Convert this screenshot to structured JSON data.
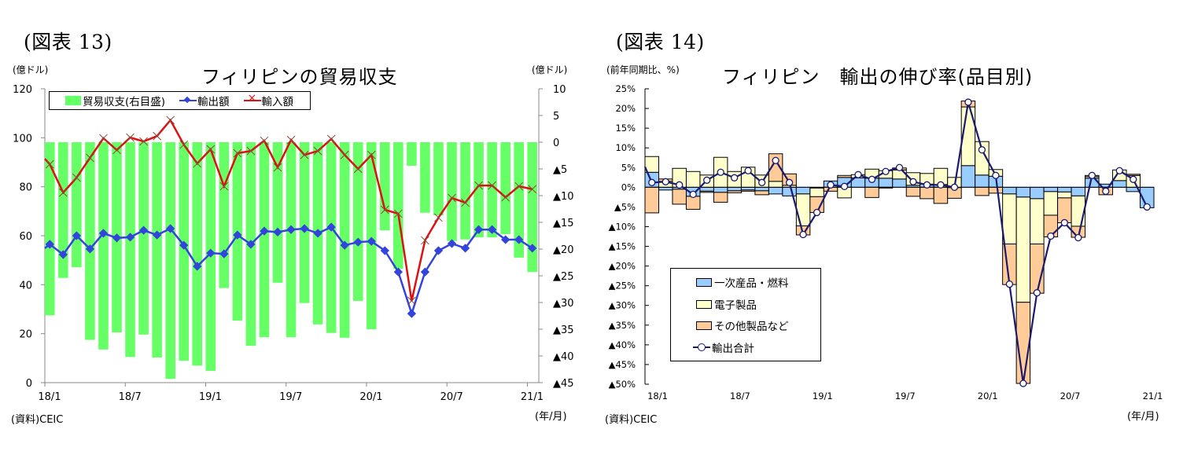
{
  "left": {
    "figure_label": "(図表 13)",
    "left_unit": "(億ドル)",
    "right_unit": "(億ドル)",
    "source": "(資料)CEIC",
    "x_unit": "(年/月)",
    "legend": {
      "balance": "貿易収支(右目盛)",
      "exports": "輸出額",
      "imports": "輸入額"
    }
  },
  "right": {
    "figure_label": "(図表 14)",
    "y_unit": "(前年同期比、%)",
    "source": "(資料)CEIC",
    "x_unit": "(年/月)",
    "legend": {
      "primary": "一次産品・燃料",
      "electronics": "電子製品",
      "other": "その他製品など",
      "total": "輸出合計"
    }
  },
  "chart_data": [
    {
      "type": "bar+line",
      "title": "フィリピンの貿易収支",
      "xlabel": "(年/月)",
      "ylabel": "(億ドル)",
      "ylabel_right": "(億ドル)",
      "ylim": [
        0,
        120
      ],
      "yticks": [
        "0",
        "20",
        "40",
        "60",
        "80",
        "100",
        "120"
      ],
      "ylim_right": [
        -45,
        10
      ],
      "yticks_right": [
        "▲45",
        "▲40",
        "▲35",
        "▲30",
        "▲25",
        "▲20",
        "▲15",
        "▲10",
        "▲5",
        "0",
        "5",
        "10"
      ],
      "xticks": [
        "18/1",
        "18/7",
        "19/1",
        "19/7",
        "20/1",
        "20/7",
        "21/1"
      ],
      "categories": [
        "18/1",
        "18/2",
        "18/3",
        "18/4",
        "18/5",
        "18/6",
        "18/7",
        "18/8",
        "18/9",
        "18/10",
        "18/11",
        "18/12",
        "19/1",
        "19/2",
        "19/3",
        "19/4",
        "19/5",
        "19/6",
        "19/7",
        "19/8",
        "19/9",
        "19/10",
        "19/11",
        "19/12",
        "20/1",
        "20/2",
        "20/3",
        "20/4",
        "20/5",
        "20/6",
        "20/7",
        "20/8",
        "20/9",
        "20/10",
        "20/11",
        "20/12",
        "21/1"
      ],
      "line_start": {
        "exports": 54.9,
        "imports": 91.4
      },
      "series": [
        {
          "name": "貿易収支(右目盛)",
          "axis": "right",
          "kind": "bar",
          "color": "#66ff66",
          "values": [
            -32.4,
            -25.4,
            -23.4,
            -37.0,
            -38.8,
            -35.6,
            -40.2,
            -36.0,
            -40.3,
            -44.3,
            -40.9,
            -41.8,
            -42.8,
            -27.3,
            -33.4,
            -38.1,
            -36.5,
            -26.3,
            -36.5,
            -30.1,
            -34.1,
            -35.7,
            -36.6,
            -29.7,
            -35.0,
            -16.5,
            -23.7,
            -4.4,
            -13.2,
            -13.7,
            -18.5,
            -18.2,
            -17.8,
            -17.8,
            -17.2,
            -21.6,
            -24.3
          ]
        },
        {
          "name": "輸出額",
          "axis": "left",
          "kind": "line",
          "marker": "diamond",
          "color": "#3344dd",
          "values": [
            56.5,
            52.3,
            60.0,
            54.6,
            61.0,
            59.1,
            59.4,
            62.2,
            60.3,
            62.9,
            56.1,
            47.5,
            52.9,
            52.6,
            60.3,
            56.5,
            61.9,
            61.5,
            62.5,
            62.9,
            61.0,
            63.5,
            56.1,
            57.4,
            57.7,
            53.9,
            45.2,
            28.2,
            45.2,
            53.9,
            56.8,
            54.9,
            62.5,
            62.5,
            58.4,
            58.4,
            54.9
          ]
        },
        {
          "name": "輸入額",
          "axis": "left",
          "kind": "line",
          "marker": "cross",
          "color": "#dd1111",
          "values": [
            89.2,
            77.6,
            83.7,
            91.8,
            99.8,
            95.0,
            100.1,
            98.5,
            100.7,
            107.2,
            97.2,
            89.5,
            95.3,
            80.2,
            93.7,
            94.6,
            98.8,
            87.9,
            99.1,
            93.0,
            94.6,
            99.5,
            93.0,
            87.3,
            93.0,
            70.6,
            69.0,
            33.4,
            58.1,
            67.4,
            75.4,
            73.5,
            80.5,
            80.5,
            75.7,
            80.2,
            79.0
          ]
        }
      ],
      "legend": "top-left"
    },
    {
      "type": "stacked-bar+line",
      "title": "フィリピン　輸出の伸び率(品目別)",
      "xlabel": "(年/月)",
      "ylabel": "(前年同期比、%)",
      "ylim": [
        -50,
        25
      ],
      "yticks": [
        "▲50%",
        "▲45%",
        "▲40%",
        "▲35%",
        "▲30%",
        "▲25%",
        "▲20%",
        "▲15%",
        "▲10%",
        "▲5%",
        "0%",
        "5%",
        "10%",
        "15%",
        "20%",
        "25%"
      ],
      "xticks": [
        "18/1",
        "18/7",
        "19/1",
        "19/7",
        "20/1",
        "20/7",
        "21/1"
      ],
      "categories": [
        "18/1",
        "18/2",
        "18/3",
        "18/4",
        "18/5",
        "18/6",
        "18/7",
        "18/8",
        "18/9",
        "18/10",
        "18/11",
        "18/12",
        "19/1",
        "19/2",
        "19/3",
        "19/4",
        "19/5",
        "19/6",
        "19/7",
        "19/8",
        "19/9",
        "19/10",
        "19/11",
        "19/12",
        "20/1",
        "20/2",
        "20/3",
        "20/4",
        "20/5",
        "20/6",
        "20/7",
        "20/8",
        "20/9",
        "20/10",
        "20/11",
        "20/12",
        "21/1"
      ],
      "line_start": 5.2,
      "series": [
        {
          "name": "一次産品・燃料",
          "kind": "bar",
          "color": "#99ccff",
          "values": [
            3.8,
            -0.7,
            -0.5,
            -2.3,
            -1.0,
            -1.3,
            -0.9,
            -0.7,
            -0.9,
            -1.7,
            -2.2,
            -1.7,
            -0.2,
            1.6,
            2.5,
            2.4,
            2.3,
            2.3,
            2.1,
            0.5,
            0.8,
            0.7,
            -0.1,
            5.5,
            3.1,
            2.8,
            -1.7,
            -2.5,
            -2.9,
            -1.1,
            -1.2,
            -2.2,
            2.3,
            0.8,
            1.7,
            -1.1,
            -5.2
          ]
        },
        {
          "name": "電子製品",
          "kind": "bar",
          "color": "#ffffcc",
          "values": [
            4.0,
            1.5,
            4.8,
            4.0,
            3.1,
            7.6,
            4.0,
            5.1,
            3.1,
            1.5,
            0.5,
            -8.1,
            -2.2,
            0.0,
            -2.7,
            0.8,
            2.3,
            1.9,
            2.3,
            3.2,
            2.7,
            4.1,
            2.5,
            14.9,
            8.5,
            1.7,
            -12.7,
            -26.7,
            -11.5,
            -6.0,
            -1.5,
            -7.7,
            0.4,
            0.0,
            2.7,
            3.0,
            0.0
          ]
        },
        {
          "name": "その他製品など",
          "kind": "bar",
          "color": "#ffcc99",
          "values": [
            -6.5,
            0.6,
            -3.8,
            -3.3,
            -0.3,
            -2.5,
            -0.5,
            -0.3,
            -1.0,
            7.0,
            2.9,
            -2.3,
            -4.0,
            -1.0,
            0.5,
            0.0,
            -2.6,
            -0.2,
            0.5,
            -2.3,
            -2.9,
            -4.1,
            -2.7,
            1.5,
            -2.1,
            -1.5,
            -10.3,
            -20.6,
            -12.5,
            -5.5,
            -6.3,
            -2.8,
            0.3,
            -1.9,
            0.0,
            0.3,
            0.0
          ]
        },
        {
          "name": "輸出合計",
          "kind": "line",
          "marker": "circle",
          "color": "#1a1a6e",
          "values": [
            1.2,
            1.4,
            0.6,
            -1.8,
            1.8,
            3.8,
            2.4,
            4.2,
            1.2,
            6.8,
            1.2,
            -12.0,
            -6.4,
            0.6,
            0.2,
            3.2,
            2.0,
            4.0,
            5.0,
            1.4,
            0.6,
            0.6,
            0.0,
            21.6,
            9.5,
            3.0,
            -24.6,
            -49.8,
            -26.8,
            -12.4,
            -9.0,
            -12.8,
            3.0,
            -1.0,
            4.2,
            2.0,
            -5.0
          ]
        }
      ],
      "legend": "bottom-left"
    }
  ]
}
